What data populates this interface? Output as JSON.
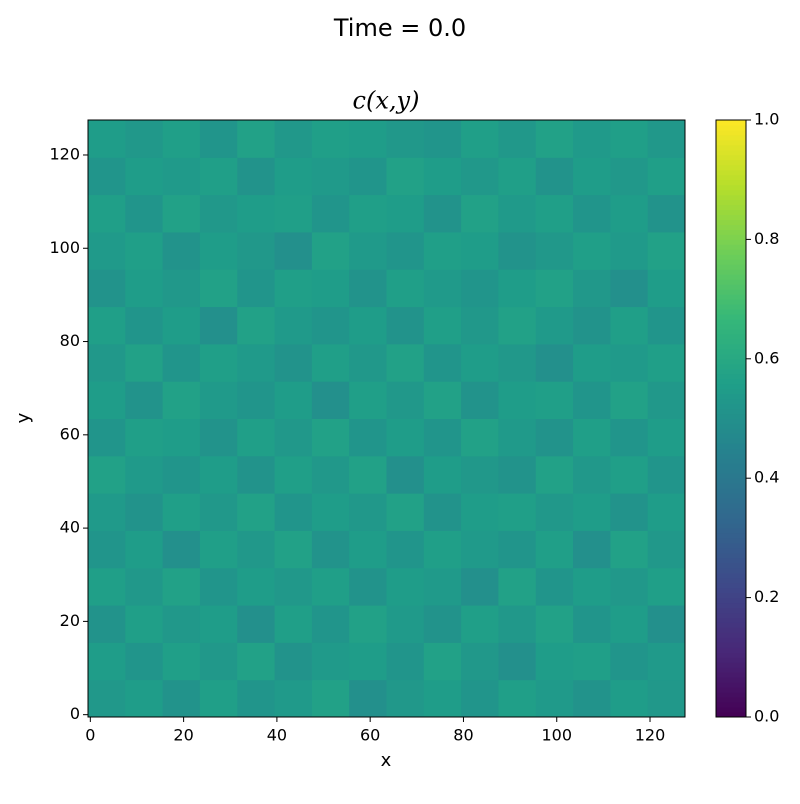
{
  "chart_data": {
    "type": "heatmap",
    "suptitle": "Time = 0.0",
    "title": "c(x,y)",
    "x_label": "x",
    "y_label": "y",
    "xlim": [
      -0.5,
      127.5
    ],
    "ylim": [
      -0.5,
      127.5
    ],
    "xticks": [
      0,
      20,
      40,
      60,
      80,
      100,
      120
    ],
    "yticks": [
      0,
      20,
      40,
      60,
      80,
      100,
      120
    ],
    "colormap": "viridis",
    "clim": [
      0,
      1
    ],
    "cticks": [
      {
        "value": 0,
        "label": "0.0"
      },
      0.2,
      0.4,
      0.6,
      0.8,
      {
        "value": 1,
        "label": "1.0"
      }
    ],
    "z": [
      [
        0.53,
        0.55,
        0.51,
        0.56,
        0.52,
        0.54,
        0.57,
        0.5,
        0.53,
        0.55,
        0.52,
        0.56,
        0.54,
        0.51,
        0.55,
        0.53
      ],
      [
        0.55,
        0.52,
        0.56,
        0.53,
        0.57,
        0.51,
        0.54,
        0.55,
        0.52,
        0.57,
        0.53,
        0.5,
        0.55,
        0.56,
        0.52,
        0.54
      ],
      [
        0.51,
        0.56,
        0.53,
        0.55,
        0.5,
        0.56,
        0.52,
        0.57,
        0.54,
        0.51,
        0.56,
        0.53,
        0.57,
        0.52,
        0.55,
        0.5
      ],
      [
        0.56,
        0.53,
        0.57,
        0.52,
        0.55,
        0.53,
        0.56,
        0.51,
        0.55,
        0.54,
        0.5,
        0.57,
        0.52,
        0.55,
        0.53,
        0.56
      ],
      [
        0.52,
        0.55,
        0.5,
        0.56,
        0.53,
        0.57,
        0.51,
        0.55,
        0.52,
        0.56,
        0.54,
        0.52,
        0.56,
        0.5,
        0.57,
        0.53
      ],
      [
        0.54,
        0.51,
        0.56,
        0.53,
        0.57,
        0.52,
        0.55,
        0.53,
        0.57,
        0.51,
        0.55,
        0.56,
        0.53,
        0.55,
        0.51,
        0.55
      ],
      [
        0.57,
        0.54,
        0.52,
        0.55,
        0.51,
        0.56,
        0.53,
        0.57,
        0.5,
        0.55,
        0.53,
        0.51,
        0.57,
        0.53,
        0.56,
        0.52
      ],
      [
        0.52,
        0.56,
        0.55,
        0.51,
        0.56,
        0.53,
        0.57,
        0.52,
        0.55,
        0.52,
        0.57,
        0.54,
        0.51,
        0.56,
        0.52,
        0.55
      ],
      [
        0.55,
        0.51,
        0.57,
        0.54,
        0.52,
        0.55,
        0.5,
        0.56,
        0.53,
        0.57,
        0.51,
        0.55,
        0.56,
        0.52,
        0.57,
        0.53
      ],
      [
        0.53,
        0.57,
        0.52,
        0.56,
        0.54,
        0.51,
        0.56,
        0.53,
        0.57,
        0.52,
        0.55,
        0.53,
        0.5,
        0.55,
        0.54,
        0.56
      ],
      [
        0.56,
        0.52,
        0.55,
        0.5,
        0.57,
        0.54,
        0.52,
        0.55,
        0.51,
        0.56,
        0.53,
        0.57,
        0.54,
        0.51,
        0.56,
        0.52
      ],
      [
        0.51,
        0.55,
        0.53,
        0.57,
        0.52,
        0.56,
        0.55,
        0.51,
        0.56,
        0.54,
        0.52,
        0.55,
        0.57,
        0.53,
        0.5,
        0.55
      ],
      [
        0.54,
        0.56,
        0.51,
        0.55,
        0.53,
        0.5,
        0.57,
        0.54,
        0.52,
        0.56,
        0.55,
        0.51,
        0.53,
        0.56,
        0.54,
        0.57
      ],
      [
        0.56,
        0.52,
        0.57,
        0.53,
        0.55,
        0.56,
        0.52,
        0.56,
        0.55,
        0.51,
        0.57,
        0.54,
        0.56,
        0.52,
        0.55,
        0.51
      ],
      [
        0.52,
        0.55,
        0.54,
        0.56,
        0.51,
        0.55,
        0.54,
        0.52,
        0.57,
        0.55,
        0.53,
        0.56,
        0.51,
        0.55,
        0.53,
        0.56
      ],
      [
        0.55,
        0.53,
        0.56,
        0.52,
        0.57,
        0.53,
        0.56,
        0.55,
        0.53,
        0.52,
        0.56,
        0.53,
        0.57,
        0.54,
        0.56,
        0.53
      ]
    ]
  }
}
